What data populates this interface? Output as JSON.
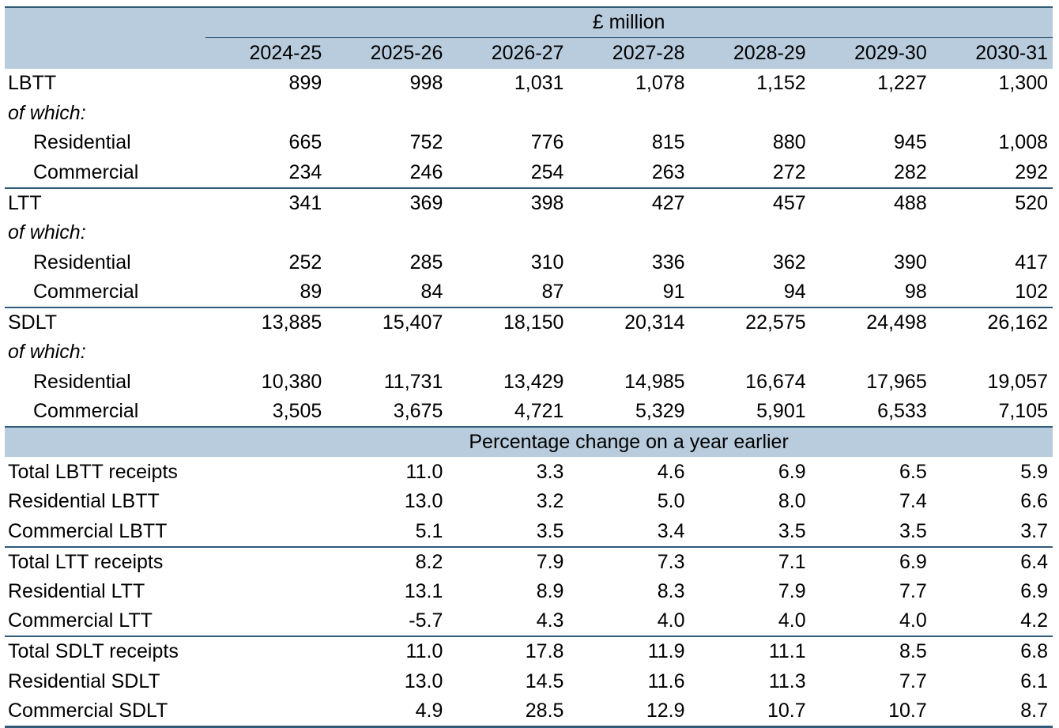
{
  "header": {
    "unit_label": "£ million",
    "years": [
      "2024-25",
      "2025-26",
      "2026-27",
      "2027-28",
      "2028-29",
      "2029-30",
      "2030-31"
    ]
  },
  "receipts": [
    {
      "label": "LBTT",
      "values": [
        "899",
        "998",
        "1,031",
        "1,078",
        "1,152",
        "1,227",
        "1,300"
      ]
    },
    {
      "label": "of which:",
      "values": []
    },
    {
      "label": "Residential",
      "values": [
        "665",
        "752",
        "776",
        "815",
        "880",
        "945",
        "1,008"
      ]
    },
    {
      "label": "Commercial",
      "values": [
        "234",
        "246",
        "254",
        "263",
        "272",
        "282",
        "292"
      ]
    },
    {
      "label": "LTT",
      "values": [
        "341",
        "369",
        "398",
        "427",
        "457",
        "488",
        "520"
      ]
    },
    {
      "label": "of which:",
      "values": []
    },
    {
      "label": "Residential",
      "values": [
        "252",
        "285",
        "310",
        "336",
        "362",
        "390",
        "417"
      ]
    },
    {
      "label": "Commercial",
      "values": [
        "89",
        "84",
        "87",
        "91",
        "94",
        "98",
        "102"
      ]
    },
    {
      "label": "SDLT",
      "values": [
        "13,885",
        "15,407",
        "18,150",
        "20,314",
        "22,575",
        "24,498",
        "26,162"
      ]
    },
    {
      "label": "of which:",
      "values": []
    },
    {
      "label": "Residential",
      "values": [
        "10,380",
        "11,731",
        "13,429",
        "14,985",
        "16,674",
        "17,965",
        "19,057"
      ]
    },
    {
      "label": "Commercial",
      "values": [
        "3,505",
        "3,675",
        "4,721",
        "5,329",
        "5,901",
        "6,533",
        "7,105"
      ]
    }
  ],
  "pct_band_label": "Percentage change on a year earlier",
  "pct_changes": [
    {
      "label": "Total LBTT receipts",
      "values": [
        "",
        "11.0",
        "3.3",
        "4.6",
        "6.9",
        "6.5",
        "5.9"
      ]
    },
    {
      "label": "Residential LBTT",
      "values": [
        "",
        "13.0",
        "3.2",
        "5.0",
        "8.0",
        "7.4",
        "6.6"
      ]
    },
    {
      "label": "Commercial LBTT",
      "values": [
        "",
        "5.1",
        "3.5",
        "3.4",
        "3.5",
        "3.5",
        "3.7"
      ]
    },
    {
      "label": "Total LTT receipts",
      "values": [
        "",
        "8.2",
        "7.9",
        "7.3",
        "7.1",
        "6.9",
        "6.4"
      ]
    },
    {
      "label": "Residential LTT",
      "values": [
        "",
        "13.1",
        "8.9",
        "8.3",
        "7.9",
        "7.7",
        "6.9"
      ]
    },
    {
      "label": "Commercial LTT",
      "values": [
        "",
        "-5.7",
        "4.3",
        "4.0",
        "4.0",
        "4.0",
        "4.2"
      ]
    },
    {
      "label": "Total SDLT receipts",
      "values": [
        "",
        "11.0",
        "17.8",
        "11.9",
        "11.1",
        "8.5",
        "6.8"
      ]
    },
    {
      "label": "Residential SDLT",
      "values": [
        "",
        "13.0",
        "14.5",
        "11.6",
        "11.3",
        "7.7",
        "6.1"
      ]
    },
    {
      "label": "Commercial SDLT",
      "values": [
        "",
        "4.9",
        "28.5",
        "12.9",
        "10.7",
        "10.7",
        "8.7"
      ]
    }
  ],
  "colors": {
    "band": "#b8ccdd",
    "rule": "#2f5a78"
  }
}
